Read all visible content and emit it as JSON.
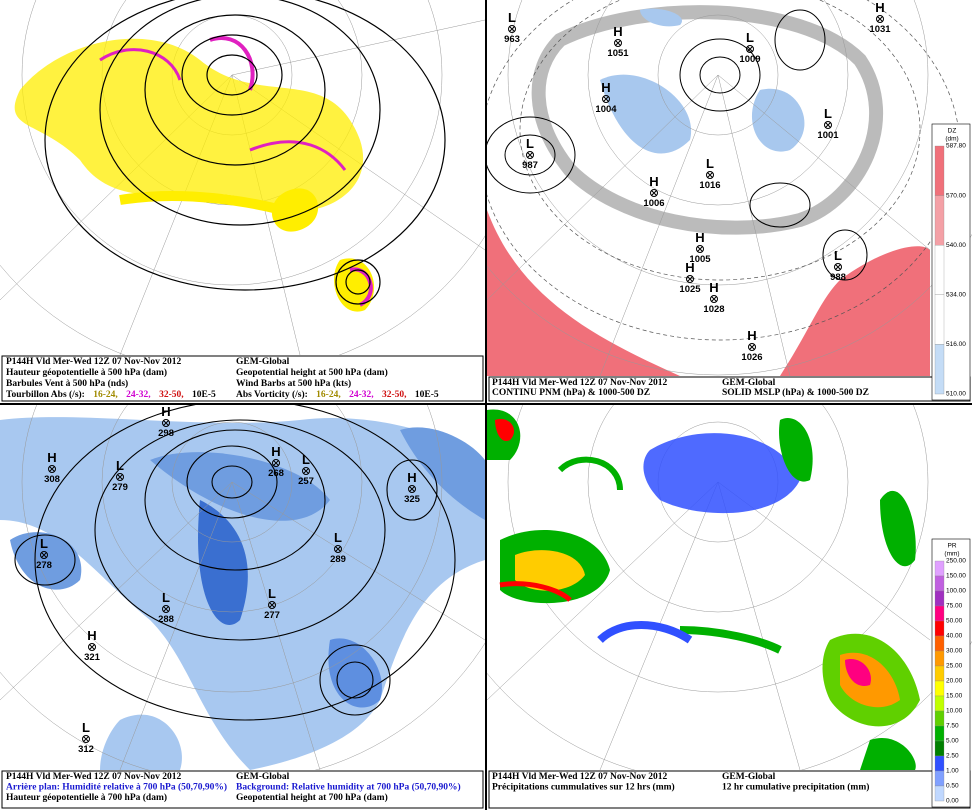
{
  "panels": [
    {
      "caption": {
        "left": [
          [
            {
              "text": "P144H Vld Mer-Wed 12Z 07 Nov-Nov 2012",
              "color": "#000"
            }
          ],
          [
            {
              "text": "Hauteur géopotentielle à 500 hPa (dam)",
              "color": "#000"
            }
          ],
          [
            {
              "text": "Barbules Vent à 500 hPa (nds)",
              "color": "#000"
            }
          ],
          [
            {
              "text": "Tourbillon Abs (/s):",
              "color": "#000"
            },
            {
              "text": "16-24,",
              "color": "#a08a00"
            },
            {
              "text": "24-32,",
              "color": "#d000d0"
            },
            {
              "text": "32-50,",
              "color": "#d01010"
            },
            {
              "text": "10E-5",
              "color": "#000"
            }
          ]
        ],
        "right": [
          [
            {
              "text": "GEM-Global",
              "color": "#000"
            }
          ],
          [
            {
              "text": "Geopotential height at 500 hPa (dam)",
              "color": "#000"
            }
          ],
          [
            {
              "text": "Wind Barbs at 500 hPa (kts)",
              "color": "#000"
            }
          ],
          [
            {
              "text": "Abs Vorticity (/s):",
              "color": "#000"
            },
            {
              "text": "16-24,",
              "color": "#a08a00"
            },
            {
              "text": "24-32,",
              "color": "#d000d0"
            },
            {
              "text": "32-50,",
              "color": "#d01010"
            },
            {
              "text": "10E-5",
              "color": "#000"
            }
          ]
        ]
      },
      "markers": []
    },
    {
      "caption": {
        "left": [
          [
            {
              "text": "P144H Vld Mer-Wed 12Z 07 Nov-Nov 2012",
              "color": "#000"
            }
          ],
          [
            {
              "text": "CONTINU PNM  (hPa) & 1000-500 DZ",
              "color": "#000"
            }
          ]
        ],
        "right": [
          [
            {
              "text": "GEM-Global",
              "color": "#000"
            }
          ],
          [
            {
              "text": "SOLID  MSLP (hPa) & 1000-500 DZ",
              "color": "#000"
            }
          ]
        ]
      },
      "markers": [
        {
          "type": "L",
          "value": "963"
        },
        {
          "type": "H",
          "value": "1051"
        },
        {
          "type": "H",
          "value": "1004"
        },
        {
          "type": "L",
          "value": "987"
        },
        {
          "type": "H",
          "value": "1006"
        },
        {
          "type": "L",
          "value": "1016"
        },
        {
          "type": "H",
          "value": "1025"
        },
        {
          "type": "H",
          "value": "1028"
        },
        {
          "type": "H",
          "value": "1026"
        },
        {
          "type": "L",
          "value": "1001"
        },
        {
          "type": "L",
          "value": "988"
        },
        {
          "type": "H",
          "value": "1031"
        },
        {
          "type": "L",
          "value": "1009"
        },
        {
          "type": "H",
          "value": "1005"
        }
      ],
      "colorbar": {
        "title": "DZ",
        "unit": "(dm)",
        "ticks": [
          "587.80",
          "570.00",
          "540.00",
          "534.00",
          "516.00",
          "510.00"
        ],
        "colors": [
          "#f0707a",
          "#f4a0a6",
          "#ffffff",
          "#ffffff",
          "#c4dcf6",
          "#a8c8ee"
        ]
      }
    },
    {
      "caption": {
        "left": [
          [
            {
              "text": "P144H Vld Mer-Wed 12Z 07 Nov-Nov 2012",
              "color": "#000"
            }
          ],
          [
            {
              "text": "Arrière plan: Humidité relative à 700 hPa (50,70,90%)",
              "color": "#1a1ad0"
            }
          ],
          [
            {
              "text": "Hauteur géopotentielle à 700 hPa (dam)",
              "color": "#000"
            }
          ]
        ],
        "right": [
          [
            {
              "text": "GEM-Global",
              "color": "#000"
            }
          ],
          [
            {
              "text": "Background: Relative humidity at 700 hPa (50,70,90%)",
              "color": "#1a1ad0"
            }
          ],
          [
            {
              "text": "Geopotential height at 700 hPa (dam)",
              "color": "#000"
            }
          ]
        ]
      },
      "markers": [
        {
          "type": "H",
          "value": "298"
        },
        {
          "type": "H",
          "value": "308"
        },
        {
          "type": "L",
          "value": "279"
        },
        {
          "type": "L",
          "value": "278"
        },
        {
          "type": "L",
          "value": "288"
        },
        {
          "type": "L",
          "value": "277"
        },
        {
          "type": "H",
          "value": "321"
        },
        {
          "type": "L",
          "value": "312"
        },
        {
          "type": "H",
          "value": "268"
        },
        {
          "type": "L",
          "value": "257"
        },
        {
          "type": "L",
          "value": "289"
        },
        {
          "type": "H",
          "value": "325"
        }
      ]
    },
    {
      "caption": {
        "left": [
          [
            {
              "text": "P144H Vld Mer-Wed 12Z 07 Nov-Nov 2012",
              "color": "#000"
            }
          ],
          [
            {
              "text": "Précipitations cummulatives sur 12 hrs (mm)",
              "color": "#000"
            }
          ]
        ],
        "right": [
          [
            {
              "text": "GEM-Global",
              "color": "#000"
            }
          ],
          [
            {
              "text": "12 hr cumulative precipitation     (mm)",
              "color": "#000"
            }
          ]
        ]
      },
      "markers": [],
      "colorbar": {
        "title": "PR",
        "unit": "(mm)",
        "ticks": [
          "250.00",
          "150.00",
          "100.00",
          "75.00",
          "50.00",
          "40.00",
          "30.00",
          "25.00",
          "20.00",
          "15.00",
          "10.00",
          "7.50",
          "5.00",
          "2.50",
          "1.00",
          "0.50",
          "0.00"
        ],
        "colors": [
          "#e0a0ff",
          "#c060e0",
          "#a030c0",
          "#ff0080",
          "#ff0000",
          "#ff6000",
          "#ff9900",
          "#ffcc00",
          "#ffff00",
          "#c0ff00",
          "#60d000",
          "#00b000",
          "#008000",
          "#3050ff",
          "#80a0ff",
          "#c0d8ff",
          "#ffffff"
        ]
      }
    }
  ]
}
